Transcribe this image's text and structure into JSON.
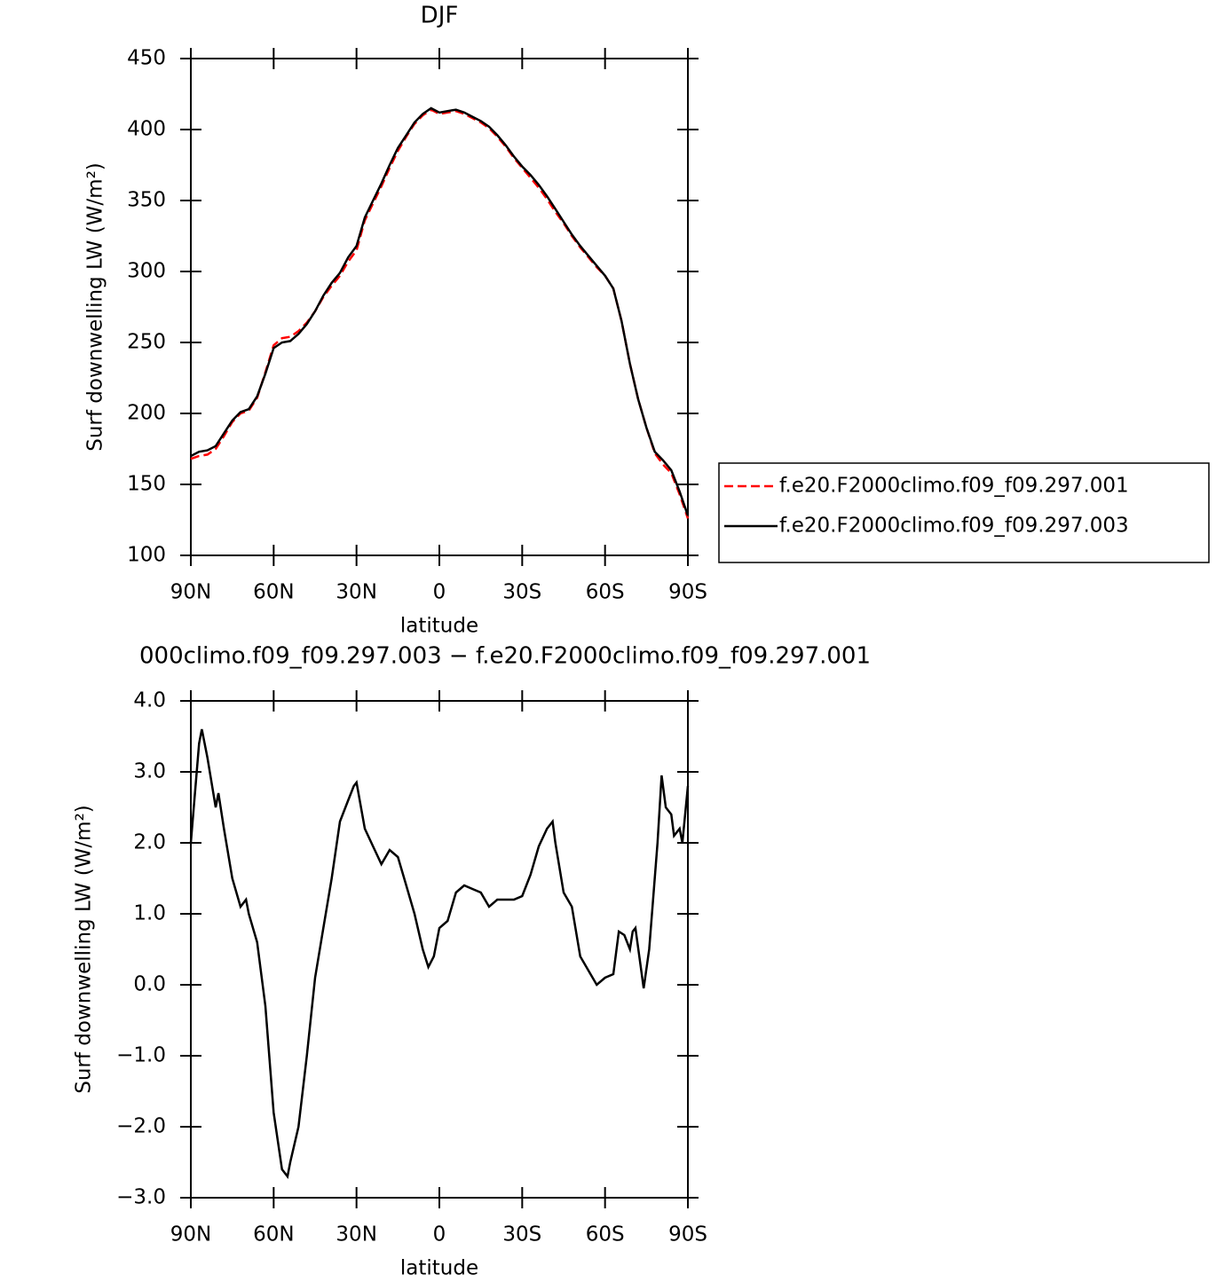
{
  "chart_data": [
    {
      "type": "line",
      "title": "DJF",
      "xlabel": "latitude",
      "ylabel": "Surf downwelling LW (W/m²)",
      "x": [
        90,
        87,
        84,
        81,
        78,
        75,
        72,
        69,
        66,
        63,
        60,
        57,
        54,
        51,
        48,
        45,
        42,
        39,
        36,
        33,
        30,
        27,
        24,
        21,
        18,
        15,
        12,
        9,
        6,
        3,
        0,
        -3,
        -6,
        -9,
        -12,
        -15,
        -18,
        -21,
        -24,
        -27,
        -30,
        -33,
        -36,
        -39,
        -42,
        -45,
        -48,
        -51,
        -54,
        -57,
        -60,
        -63,
        -66,
        -69,
        -72,
        -75,
        -78,
        -81,
        -84,
        -87,
        -90
      ],
      "series": [
        {
          "name": "f.e20.F2000climo.f09_f09.297.001",
          "color": "#ff0000",
          "dash": true,
          "values": [
            168,
            170,
            171,
            175,
            184,
            194,
            200,
            202,
            211,
            229,
            248,
            253,
            254,
            258,
            264,
            272,
            282,
            290,
            297,
            307,
            315,
            336,
            348,
            360,
            373,
            385,
            395,
            404,
            410,
            414,
            411,
            412,
            413,
            411,
            408,
            405,
            401,
            395,
            388,
            380,
            373,
            366,
            359,
            351,
            342,
            334,
            325,
            317,
            310,
            303,
            297,
            288,
            265,
            235,
            210,
            190,
            172,
            164,
            158,
            143,
            126
          ]
        },
        {
          "name": "f.e20.F2000climo.f09_f09.297.003",
          "color": "#000000",
          "dash": false,
          "values": [
            170,
            173,
            174,
            177,
            186,
            195,
            201,
            203,
            212,
            228,
            246,
            250,
            251,
            256,
            263,
            272,
            283,
            292,
            299,
            310,
            318,
            338,
            350,
            362,
            375,
            387,
            396,
            405,
            411,
            415,
            412,
            413,
            414,
            412,
            409,
            406,
            402,
            396,
            389,
            381,
            374,
            368,
            361,
            353,
            344,
            335,
            326,
            318,
            311,
            304,
            297,
            288,
            265,
            235,
            210,
            190,
            173,
            167,
            160,
            145,
            128
          ]
        }
      ],
      "xlim": [
        90,
        -90
      ],
      "ylim": [
        100,
        450
      ],
      "xticks": [
        {
          "value": 90,
          "label": "90N"
        },
        {
          "value": 60,
          "label": "60N"
        },
        {
          "value": 30,
          "label": "30N"
        },
        0,
        {
          "value": -30,
          "label": "30S"
        },
        {
          "value": -60,
          "label": "60S"
        },
        {
          "value": -90,
          "label": "90S"
        }
      ],
      "yticks": [
        100,
        150,
        200,
        250,
        300,
        350,
        400,
        450
      ],
      "legend": "right"
    },
    {
      "type": "line",
      "title": "000climo.f09_f09.297.003 − f.e20.F2000climo.f09_f09.297.001",
      "xlabel": "latitude",
      "ylabel": "Surf downwelling LW (W/m²)",
      "x": [
        90,
        87,
        86,
        84,
        81,
        80,
        78,
        75,
        72,
        70,
        69,
        66,
        63,
        60,
        57,
        55,
        54,
        51,
        48,
        45,
        42,
        39,
        36,
        33,
        31,
        30,
        27,
        24,
        21,
        18,
        15,
        12,
        9,
        6,
        4,
        2,
        0,
        -3,
        -6,
        -9,
        -12,
        -15,
        -18,
        -21,
        -24,
        -27,
        -30,
        -33,
        -36,
        -39,
        -41,
        -42,
        -45,
        -48,
        -51,
        -54,
        -57,
        -60,
        -63,
        -65,
        -67,
        -69,
        -70,
        -71,
        -74,
        -76,
        -79,
        -80.5,
        -82,
        -84,
        -85,
        -87,
        -88,
        -90
      ],
      "series": [
        {
          "color": "#000000",
          "dash": false,
          "values": [
            2.0,
            3.4,
            3.6,
            3.2,
            2.5,
            2.7,
            2.2,
            1.5,
            1.1,
            1.2,
            1.0,
            0.6,
            -0.3,
            -1.8,
            -2.6,
            -2.7,
            -2.5,
            -2.0,
            -1.0,
            0.1,
            0.8,
            1.5,
            2.3,
            2.6,
            2.8,
            2.85,
            2.2,
            1.95,
            1.7,
            1.9,
            1.8,
            1.4,
            1.0,
            0.5,
            0.25,
            0.4,
            0.8,
            0.9,
            1.3,
            1.4,
            1.35,
            1.3,
            1.1,
            1.2,
            1.2,
            1.2,
            1.25,
            1.55,
            1.95,
            2.2,
            2.3,
            2.0,
            1.3,
            1.1,
            0.4,
            0.2,
            0.0,
            0.1,
            0.15,
            0.75,
            0.7,
            0.5,
            0.75,
            0.8,
            -0.05,
            0.5,
            2.0,
            2.95,
            2.5,
            2.4,
            2.1,
            2.2,
            2.0,
            2.8
          ]
        }
      ],
      "xlim": [
        90,
        -90
      ],
      "ylim": [
        -3,
        4
      ],
      "xticks": [
        {
          "value": 90,
          "label": "90N"
        },
        {
          "value": 60,
          "label": "60N"
        },
        {
          "value": 30,
          "label": "30N"
        },
        0,
        {
          "value": -30,
          "label": "30S"
        },
        {
          "value": -60,
          "label": "60S"
        },
        {
          "value": -90,
          "label": "90S"
        }
      ],
      "yticks": [
        {
          "value": -3,
          "label": "−3.0"
        },
        {
          "value": -2,
          "label": "−2.0"
        },
        {
          "value": -1,
          "label": "−1.0"
        },
        {
          "value": 0,
          "label": "0.0"
        },
        {
          "value": 1,
          "label": "1.0"
        },
        {
          "value": 2,
          "label": "2.0"
        },
        {
          "value": 3,
          "label": "3.0"
        },
        {
          "value": 4,
          "label": "4.0"
        }
      ]
    }
  ]
}
